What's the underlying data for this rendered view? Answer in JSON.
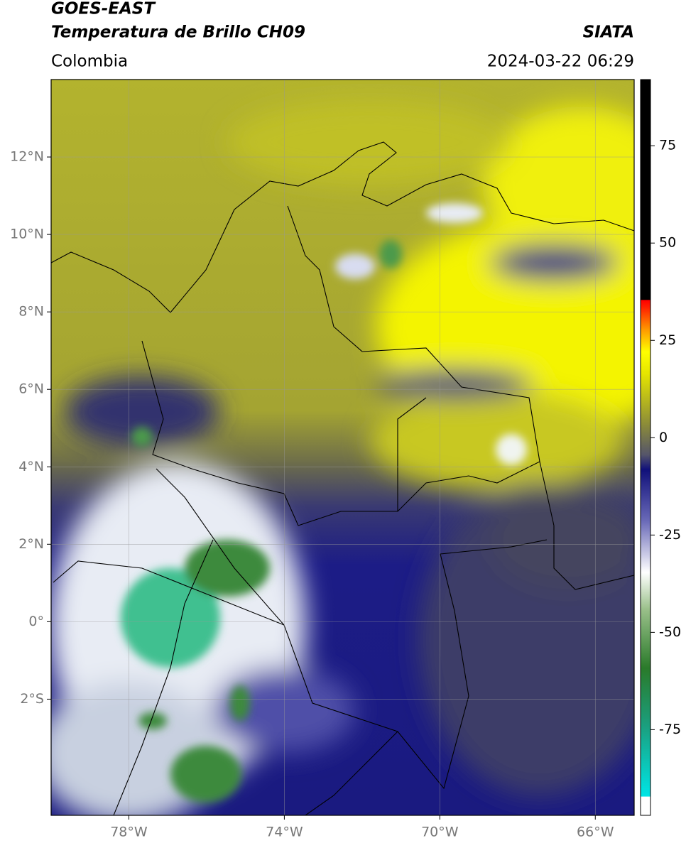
{
  "header": {
    "title": "GOES-EAST",
    "subtitle": "Temperatura de Brillo CH09",
    "source": "SIATA",
    "region": "Colombia",
    "datetime": "2024-03-22 06:29"
  },
  "map": {
    "xlim": [
      -80,
      -65
    ],
    "ylim": [
      -5,
      14
    ],
    "xticks": [
      {
        "value": -78,
        "label": "78°W"
      },
      {
        "value": -74,
        "label": "74°W"
      },
      {
        "value": -70,
        "label": "70°W"
      },
      {
        "value": -66,
        "label": "66°W"
      }
    ],
    "yticks": [
      {
        "value": 12,
        "label": "12°N"
      },
      {
        "value": 10,
        "label": "10°N"
      },
      {
        "value": 8,
        "label": "8°N"
      },
      {
        "value": 6,
        "label": "6°N"
      },
      {
        "value": 4,
        "label": "4°N"
      },
      {
        "value": 2,
        "label": "2°N"
      },
      {
        "value": 0,
        "label": "0°"
      },
      {
        "value": -2,
        "label": "2°S"
      }
    ]
  },
  "colorbar": {
    "lim": [
      -97,
      92
    ],
    "ticks": [
      75,
      50,
      25,
      0,
      -25,
      -50,
      -75
    ]
  }
}
